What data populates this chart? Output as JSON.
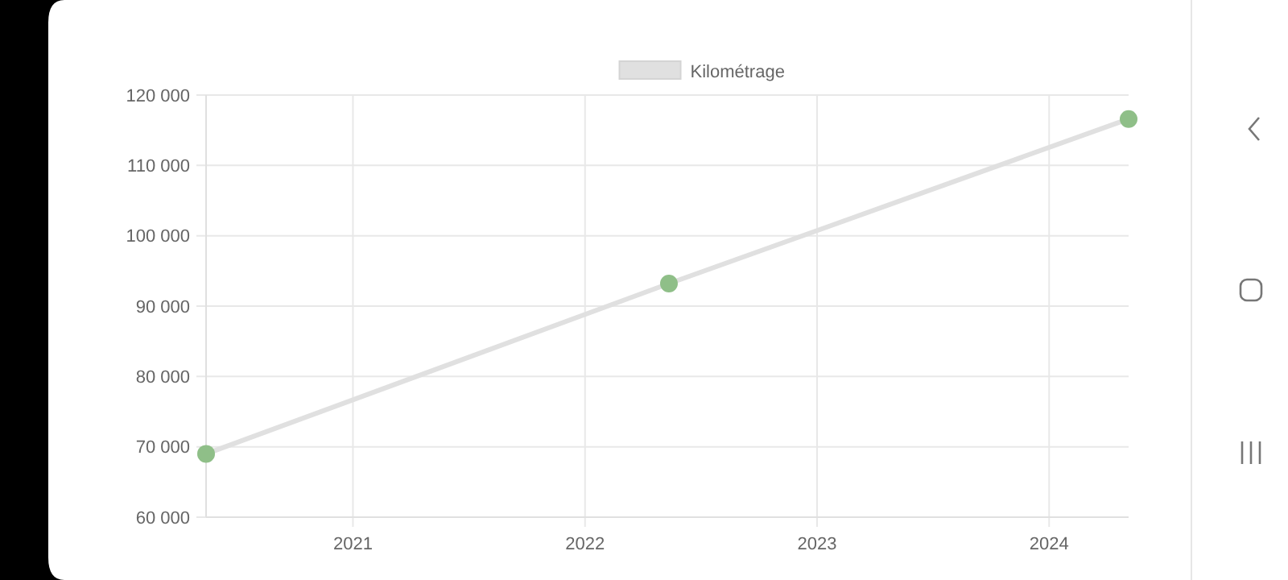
{
  "chart_data": {
    "type": "line",
    "x": [
      "2020-05-15",
      "2022-05-13",
      "2024-05-05"
    ],
    "series": [
      {
        "name": "Kilométrage",
        "color": "#e0e0e0",
        "colors": [
          "#8fbf88",
          "#8fbf88",
          "#8fbf88"
        ],
        "values": [
          69000,
          93200,
          116600
        ]
      }
    ],
    "xlim": [
      "2020-05-15",
      "2024-05-05"
    ],
    "xticks": [
      "2021",
      "2022",
      "2023",
      "2024"
    ],
    "ylim": [
      60000,
      120000
    ],
    "yticks": [
      {
        "value": 60000,
        "label": "60 000"
      },
      {
        "value": 70000,
        "label": "70 000"
      },
      {
        "value": 80000,
        "label": "80 000"
      },
      {
        "value": 90000,
        "label": "90 000"
      },
      {
        "value": 100000,
        "label": "100 000"
      },
      {
        "value": 110000,
        "label": "110 000"
      },
      {
        "value": 120000,
        "label": "120 000"
      }
    ],
    "grid": true,
    "legend": "top",
    "marker": "circle",
    "line_style": "solid"
  }
}
